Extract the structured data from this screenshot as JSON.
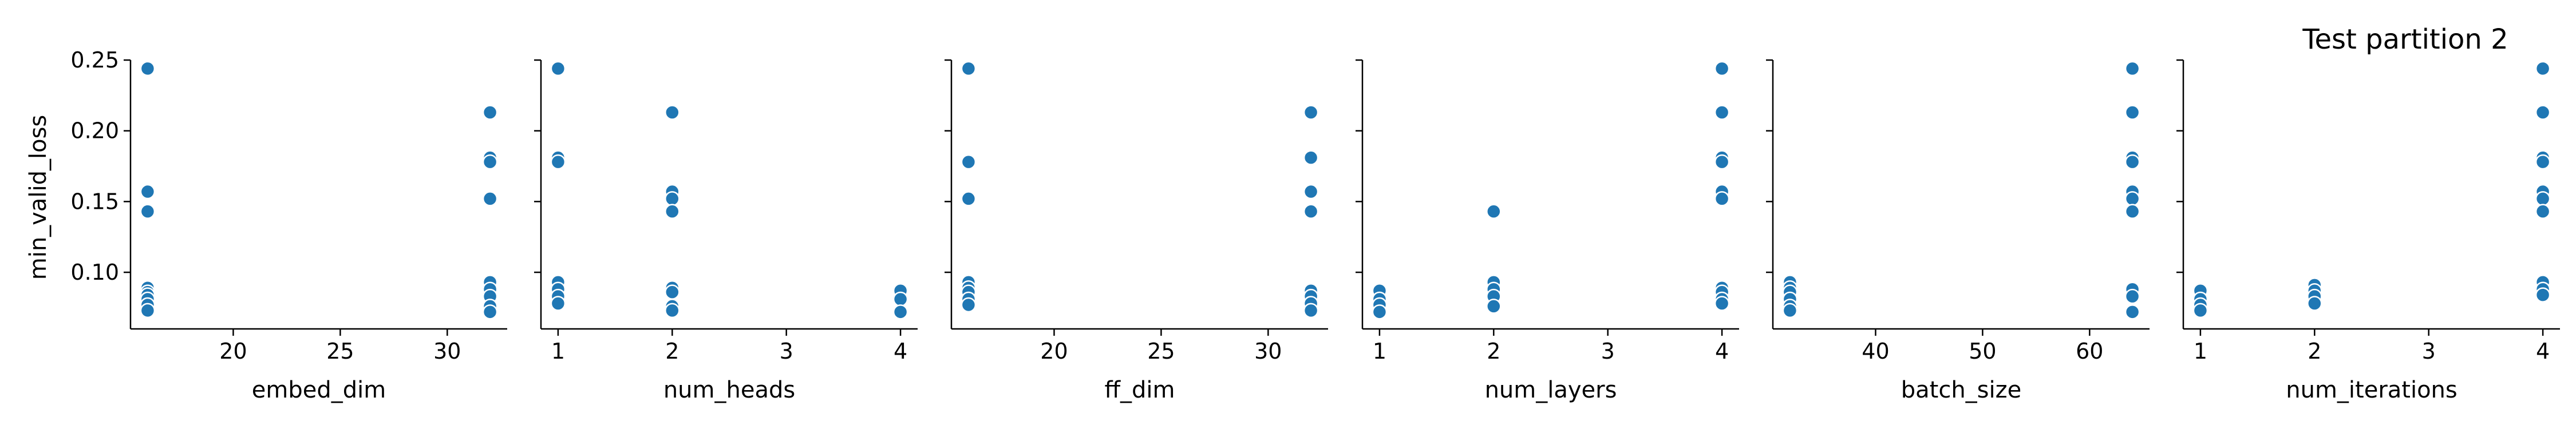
{
  "chart_data": {
    "type": "scatter",
    "title": "Test partition 2",
    "ylabel": "min_valid_loss",
    "color": "#1f77b4",
    "shared_y": {
      "ylim": [
        0.06,
        0.25
      ],
      "ticks": [
        0.1,
        0.15,
        0.2,
        0.25
      ],
      "tick_labels": [
        "0.10",
        "0.15",
        "0.20",
        "0.25"
      ]
    },
    "panels": [
      {
        "xlabel": "embed_dim",
        "xlim": [
          15.2,
          32.8
        ],
        "xticks": [
          20,
          25,
          30
        ],
        "points": [
          [
            16,
            0.244
          ],
          [
            16,
            0.157
          ],
          [
            16,
            0.143
          ],
          [
            16,
            0.089
          ],
          [
            16,
            0.086
          ],
          [
            16,
            0.084
          ],
          [
            16,
            0.081
          ],
          [
            16,
            0.077
          ],
          [
            16,
            0.073
          ],
          [
            32,
            0.213
          ],
          [
            32,
            0.181
          ],
          [
            32,
            0.178
          ],
          [
            32,
            0.152
          ],
          [
            32,
            0.093
          ],
          [
            32,
            0.088
          ],
          [
            32,
            0.083
          ],
          [
            32,
            0.076
          ],
          [
            32,
            0.072
          ]
        ]
      },
      {
        "xlabel": "num_heads",
        "xlim": [
          0.85,
          4.15
        ],
        "xticks": [
          1,
          2,
          3,
          4
        ],
        "points": [
          [
            1,
            0.244
          ],
          [
            1,
            0.181
          ],
          [
            1,
            0.178
          ],
          [
            1,
            0.093
          ],
          [
            1,
            0.088
          ],
          [
            1,
            0.083
          ],
          [
            1,
            0.078
          ],
          [
            2,
            0.213
          ],
          [
            2,
            0.157
          ],
          [
            2,
            0.152
          ],
          [
            2,
            0.143
          ],
          [
            2,
            0.089
          ],
          [
            2,
            0.086
          ],
          [
            2,
            0.076
          ],
          [
            2,
            0.073
          ],
          [
            4,
            0.087
          ],
          [
            4,
            0.081
          ],
          [
            4,
            0.072
          ]
        ]
      },
      {
        "xlabel": "ff_dim",
        "xlim": [
          15.2,
          32.8
        ],
        "xticks": [
          20,
          25,
          30
        ],
        "points": [
          [
            16,
            0.244
          ],
          [
            16,
            0.178
          ],
          [
            16,
            0.152
          ],
          [
            16,
            0.093
          ],
          [
            16,
            0.089
          ],
          [
            16,
            0.086
          ],
          [
            16,
            0.081
          ],
          [
            16,
            0.077
          ],
          [
            32,
            0.213
          ],
          [
            32,
            0.181
          ],
          [
            32,
            0.157
          ],
          [
            32,
            0.143
          ],
          [
            32,
            0.087
          ],
          [
            32,
            0.083
          ],
          [
            32,
            0.078
          ],
          [
            32,
            0.073
          ]
        ]
      },
      {
        "xlabel": "num_layers",
        "xlim": [
          0.85,
          4.15
        ],
        "xticks": [
          1,
          2,
          3,
          4
        ],
        "points": [
          [
            1,
            0.087
          ],
          [
            1,
            0.081
          ],
          [
            1,
            0.077
          ],
          [
            1,
            0.072
          ],
          [
            2,
            0.143
          ],
          [
            2,
            0.093
          ],
          [
            2,
            0.088
          ],
          [
            2,
            0.083
          ],
          [
            2,
            0.076
          ],
          [
            4,
            0.244
          ],
          [
            4,
            0.213
          ],
          [
            4,
            0.181
          ],
          [
            4,
            0.178
          ],
          [
            4,
            0.157
          ],
          [
            4,
            0.152
          ],
          [
            4,
            0.089
          ],
          [
            4,
            0.086
          ],
          [
            4,
            0.081
          ],
          [
            4,
            0.078
          ]
        ]
      },
      {
        "xlabel": "batch_size",
        "xlim": [
          30.4,
          65.6
        ],
        "xticks": [
          40,
          50,
          60
        ],
        "points": [
          [
            32,
            0.093
          ],
          [
            32,
            0.089
          ],
          [
            32,
            0.086
          ],
          [
            32,
            0.081
          ],
          [
            32,
            0.076
          ],
          [
            32,
            0.073
          ],
          [
            64,
            0.244
          ],
          [
            64,
            0.213
          ],
          [
            64,
            0.181
          ],
          [
            64,
            0.178
          ],
          [
            64,
            0.157
          ],
          [
            64,
            0.152
          ],
          [
            64,
            0.143
          ],
          [
            64,
            0.088
          ],
          [
            64,
            0.083
          ],
          [
            64,
            0.072
          ]
        ]
      },
      {
        "xlabel": "num_iterations",
        "xlim": [
          0.85,
          4.15
        ],
        "xticks": [
          1,
          2,
          3,
          4
        ],
        "points": [
          [
            1,
            0.087
          ],
          [
            1,
            0.081
          ],
          [
            1,
            0.077
          ],
          [
            1,
            0.073
          ],
          [
            2,
            0.091
          ],
          [
            2,
            0.087
          ],
          [
            2,
            0.083
          ],
          [
            2,
            0.078
          ],
          [
            4,
            0.244
          ],
          [
            4,
            0.213
          ],
          [
            4,
            0.181
          ],
          [
            4,
            0.178
          ],
          [
            4,
            0.157
          ],
          [
            4,
            0.152
          ],
          [
            4,
            0.143
          ],
          [
            4,
            0.093
          ],
          [
            4,
            0.088
          ],
          [
            4,
            0.084
          ]
        ]
      }
    ]
  }
}
